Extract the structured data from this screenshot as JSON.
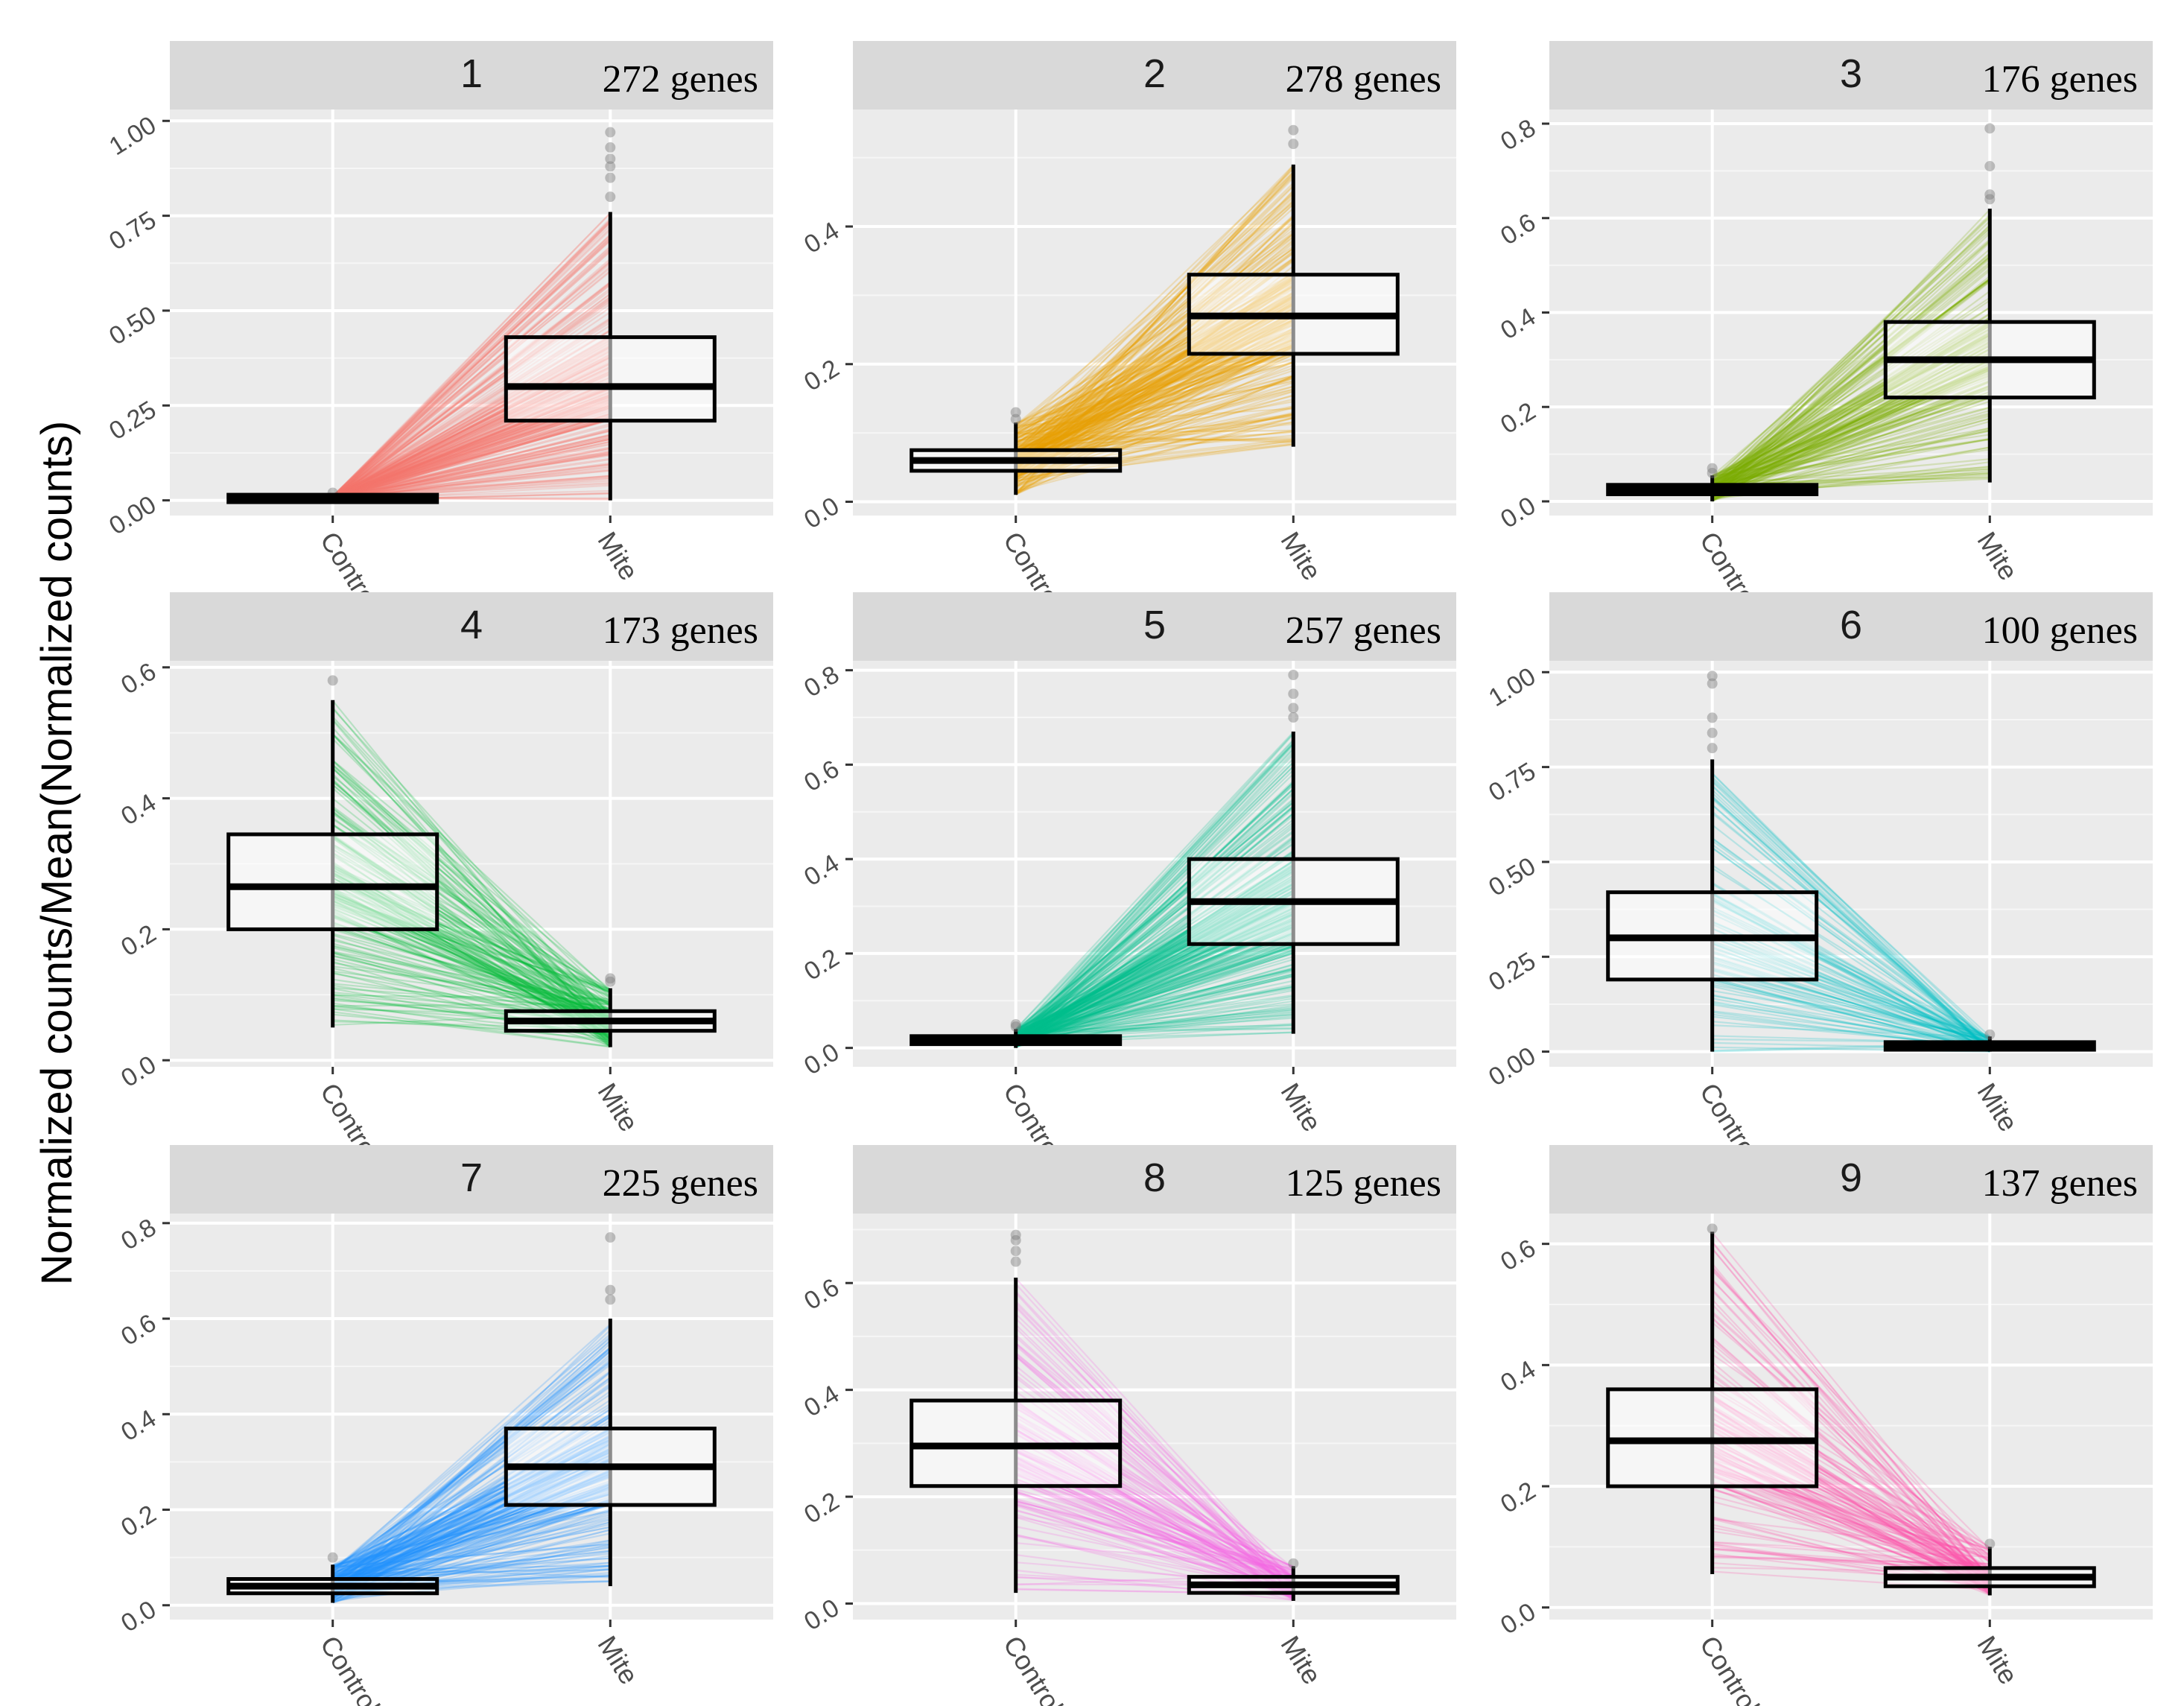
{
  "figure": {
    "ylabel": "Normalized counts/Mean(Normalized counts)"
  },
  "chart_data": [
    {
      "type": "box",
      "title": "1",
      "genes": "272 genes",
      "categories": [
        "Control",
        "Mite"
      ],
      "series_color": "#F8766D",
      "yticks": [
        "0.00",
        "0.25",
        "0.50",
        "0.75",
        "1.00"
      ],
      "ylim": [
        -0.04,
        1.03
      ],
      "control": {
        "min": 0.0,
        "q1": 0.0,
        "median": 0.005,
        "q3": 0.01,
        "max": 0.012,
        "outliers": [
          0.02
        ]
      },
      "mite": {
        "min": 0.0,
        "q1": 0.21,
        "median": 0.3,
        "q3": 0.43,
        "max": 0.76,
        "outliers": [
          0.8,
          0.85,
          0.88,
          0.9,
          0.93,
          0.97
        ]
      },
      "xlabel": "",
      "grid": true
    },
    {
      "type": "box",
      "title": "2",
      "genes": "278 genes",
      "categories": [
        "Control",
        "Mite"
      ],
      "series_color": "#E69F00",
      "yticks": [
        "0.0",
        "0.2",
        "0.4"
      ],
      "ylim": [
        -0.02,
        0.57
      ],
      "control": {
        "min": 0.01,
        "q1": 0.045,
        "median": 0.06,
        "q3": 0.075,
        "max": 0.115,
        "outliers": [
          0.12,
          0.13
        ]
      },
      "mite": {
        "min": 0.08,
        "q1": 0.215,
        "median": 0.27,
        "q3": 0.33,
        "max": 0.49,
        "outliers": [
          0.52,
          0.54
        ]
      },
      "xlabel": "",
      "grid": true
    },
    {
      "type": "box",
      "title": "3",
      "genes": "176 genes",
      "categories": [
        "Control",
        "Mite"
      ],
      "series_color": "#7CAE00",
      "yticks": [
        "0.0",
        "0.2",
        "0.4",
        "0.6",
        "0.8"
      ],
      "ylim": [
        -0.03,
        0.83
      ],
      "control": {
        "min": 0.0,
        "q1": 0.015,
        "median": 0.025,
        "q3": 0.035,
        "max": 0.055,
        "outliers": [
          0.06,
          0.07
        ]
      },
      "mite": {
        "min": 0.04,
        "q1": 0.22,
        "median": 0.3,
        "q3": 0.38,
        "max": 0.62,
        "outliers": [
          0.64,
          0.65,
          0.71,
          0.79
        ]
      },
      "xlabel": "",
      "grid": true
    },
    {
      "type": "box",
      "title": "4",
      "genes": "173 genes",
      "categories": [
        "Control",
        "Mite"
      ],
      "series_color": "#00BA38",
      "yticks": [
        "0.0",
        "0.2",
        "0.4",
        "0.6"
      ],
      "ylim": [
        -0.01,
        0.61
      ],
      "control": {
        "min": 0.05,
        "q1": 0.2,
        "median": 0.265,
        "q3": 0.345,
        "max": 0.55,
        "outliers": [
          0.58
        ]
      },
      "mite": {
        "min": 0.02,
        "q1": 0.045,
        "median": 0.06,
        "q3": 0.075,
        "max": 0.11,
        "outliers": [
          0.12,
          0.125
        ]
      },
      "xlabel": "",
      "grid": true
    },
    {
      "type": "box",
      "title": "5",
      "genes": "257 genes",
      "categories": [
        "Control",
        "Mite"
      ],
      "series_color": "#00C08B",
      "yticks": [
        "0.0",
        "0.2",
        "0.4",
        "0.6",
        "0.8"
      ],
      "ylim": [
        -0.04,
        0.82
      ],
      "control": {
        "min": 0.0,
        "q1": 0.008,
        "median": 0.015,
        "q3": 0.025,
        "max": 0.04,
        "outliers": [
          0.045,
          0.05
        ]
      },
      "mite": {
        "min": 0.03,
        "q1": 0.22,
        "median": 0.31,
        "q3": 0.4,
        "max": 0.67,
        "outliers": [
          0.7,
          0.72,
          0.75,
          0.79
        ]
      },
      "xlabel": "",
      "grid": true
    },
    {
      "type": "box",
      "title": "6",
      "genes": "100 genes",
      "categories": [
        "Control",
        "Mite"
      ],
      "series_color": "#00BFC4",
      "yticks": [
        "0.00",
        "0.25",
        "0.50",
        "0.75",
        "1.00"
      ],
      "ylim": [
        -0.04,
        1.03
      ],
      "control": {
        "min": 0.0,
        "q1": 0.19,
        "median": 0.3,
        "q3": 0.42,
        "max": 0.77,
        "outliers": [
          0.8,
          0.84,
          0.88,
          0.97,
          0.99
        ]
      },
      "mite": {
        "min": 0.0,
        "q1": 0.005,
        "median": 0.015,
        "q3": 0.025,
        "max": 0.04,
        "outliers": [
          0.045
        ]
      },
      "xlabel": "",
      "grid": true
    },
    {
      "type": "box",
      "title": "7",
      "genes": "225 genes",
      "categories": [
        "Control",
        "Mite"
      ],
      "series_color": "#1E90FF",
      "yticks": [
        "0.0",
        "0.2",
        "0.4",
        "0.6",
        "0.8"
      ],
      "ylim": [
        -0.03,
        0.82
      ],
      "control": {
        "min": 0.005,
        "q1": 0.025,
        "median": 0.04,
        "q3": 0.055,
        "max": 0.085,
        "outliers": [
          0.1
        ]
      },
      "mite": {
        "min": 0.04,
        "q1": 0.21,
        "median": 0.29,
        "q3": 0.37,
        "max": 0.6,
        "outliers": [
          0.64,
          0.66,
          0.77
        ]
      },
      "xlabel": "",
      "grid": true
    },
    {
      "type": "box",
      "title": "8",
      "genes": "125 genes",
      "categories": [
        "Control",
        "Mite"
      ],
      "series_color": "#F564E3",
      "yticks": [
        "0.0",
        "0.2",
        "0.4",
        "0.6"
      ],
      "ylim": [
        -0.03,
        0.73
      ],
      "control": {
        "min": 0.02,
        "q1": 0.22,
        "median": 0.295,
        "q3": 0.38,
        "max": 0.61,
        "outliers": [
          0.64,
          0.66,
          0.68,
          0.69
        ]
      },
      "mite": {
        "min": 0.005,
        "q1": 0.02,
        "median": 0.035,
        "q3": 0.05,
        "max": 0.07,
        "outliers": [
          0.075
        ]
      },
      "xlabel": "",
      "grid": true
    },
    {
      "type": "box",
      "title": "9",
      "genes": "137 genes",
      "categories": [
        "Control",
        "Mite"
      ],
      "series_color": "#FF4FA8",
      "yticks": [
        "0.0",
        "0.2",
        "0.4",
        "0.6"
      ],
      "ylim": [
        -0.02,
        0.65
      ],
      "control": {
        "min": 0.055,
        "q1": 0.2,
        "median": 0.275,
        "q3": 0.36,
        "max": 0.62,
        "outliers": [
          0.625
        ]
      },
      "mite": {
        "min": 0.02,
        "q1": 0.035,
        "median": 0.05,
        "q3": 0.065,
        "max": 0.1,
        "outliers": [
          0.105
        ]
      },
      "xlabel": "",
      "grid": true
    }
  ]
}
